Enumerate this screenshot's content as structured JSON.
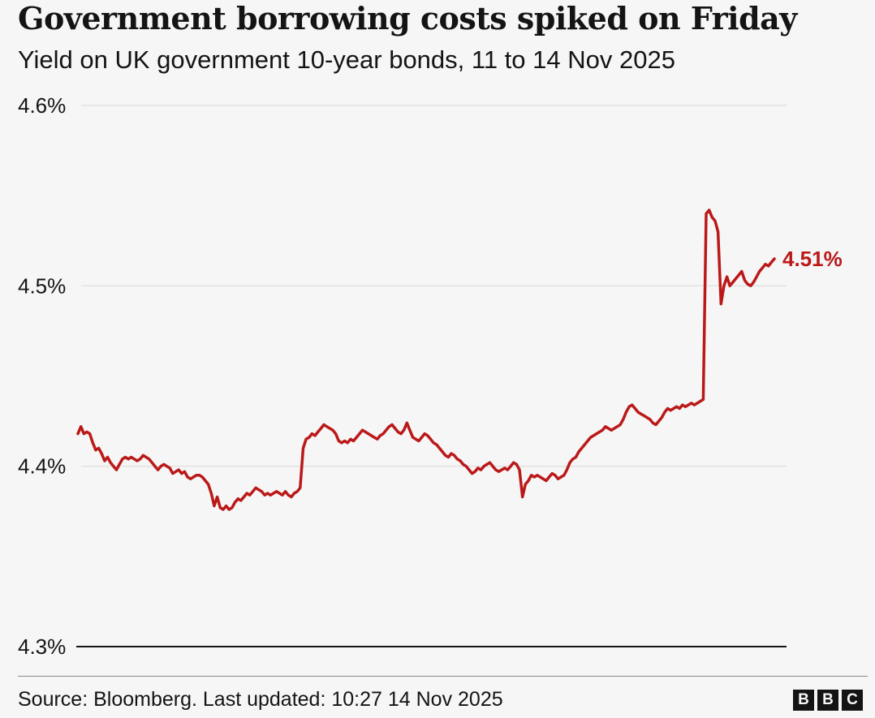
{
  "header": {
    "title": "Government borrowing costs spiked on Friday",
    "subtitle": "Yield on UK government 10-year bonds, 11 to 14 Nov 2025"
  },
  "footer": {
    "source": "Source: Bloomberg. Last updated: 10:27 14 Nov 2025",
    "logo_letters": [
      "B",
      "B",
      "C"
    ]
  },
  "colors": {
    "background": "#f6f6f6",
    "line": "#bb1919",
    "grid": "#e2e2e2",
    "axis": "#141414",
    "text": "#141414"
  },
  "chart_data": {
    "type": "line",
    "title": "Government borrowing costs spiked on Friday",
    "subtitle": "Yield on UK government 10-year bonds, 11 to 14 Nov 2025",
    "ylim": [
      4.3,
      4.6
    ],
    "y_ticks": [
      4.3,
      4.4,
      4.5,
      4.6
    ],
    "y_tick_labels": [
      "4.3%",
      "4.4%",
      "4.5%",
      "4.6%"
    ],
    "grid": true,
    "end_label": "4.51%",
    "series": [
      {
        "values": [
          4.418,
          4.422,
          4.418,
          4.419,
          4.418,
          4.413,
          4.409,
          4.41,
          4.407,
          4.403,
          4.405,
          4.402,
          4.4,
          4.398,
          4.401,
          4.404,
          4.405,
          4.404,
          4.405,
          4.404,
          4.403,
          4.404,
          4.406,
          4.405,
          4.404,
          4.402,
          4.4,
          4.398,
          4.4,
          4.401,
          4.4,
          4.399,
          4.396,
          4.397,
          4.398,
          4.396,
          4.397,
          4.394,
          4.393,
          4.394,
          4.395,
          4.395,
          4.394,
          4.392,
          4.39,
          4.385,
          4.378,
          4.383,
          4.377,
          4.376,
          4.378,
          4.376,
          4.377,
          4.38,
          4.382,
          4.381,
          4.383,
          4.385,
          4.384,
          4.386,
          4.388,
          4.387,
          4.386,
          4.384,
          4.385,
          4.384,
          4.385,
          4.386,
          4.385,
          4.384,
          4.386,
          4.384,
          4.383,
          4.385,
          4.386,
          4.388,
          4.41,
          4.415,
          4.416,
          4.418,
          4.417,
          4.419,
          4.421,
          4.423,
          4.422,
          4.421,
          4.42,
          4.418,
          4.414,
          4.413,
          4.414,
          4.413,
          4.415,
          4.414,
          4.416,
          4.418,
          4.42,
          4.419,
          4.418,
          4.417,
          4.416,
          4.415,
          4.417,
          4.418,
          4.42,
          4.422,
          4.423,
          4.421,
          4.419,
          4.418,
          4.42,
          4.424,
          4.42,
          4.416,
          4.415,
          4.414,
          4.416,
          4.418,
          4.417,
          4.415,
          4.413,
          4.412,
          4.41,
          4.408,
          4.406,
          4.405,
          4.407,
          4.406,
          4.404,
          4.403,
          4.401,
          4.4,
          4.398,
          4.396,
          4.397,
          4.399,
          4.398,
          4.4,
          4.401,
          4.402,
          4.4,
          4.398,
          4.397,
          4.398,
          4.399,
          4.398,
          4.4,
          4.402,
          4.401,
          4.398,
          4.383,
          4.39,
          4.392,
          4.395,
          4.394,
          4.395,
          4.394,
          4.393,
          4.392,
          4.394,
          4.396,
          4.395,
          4.393,
          4.394,
          4.395,
          4.398,
          4.402,
          4.404,
          4.405,
          4.408,
          4.41,
          4.412,
          4.414,
          4.416,
          4.417,
          4.418,
          4.419,
          4.42,
          4.422,
          4.421,
          4.42,
          4.421,
          4.422,
          4.423,
          4.426,
          4.43,
          4.433,
          4.434,
          4.432,
          4.43,
          4.429,
          4.428,
          4.427,
          4.426,
          4.424,
          4.423,
          4.425,
          4.427,
          4.43,
          4.432,
          4.431,
          4.432,
          4.433,
          4.432,
          4.434,
          4.433,
          4.434,
          4.435,
          4.434,
          4.435,
          4.436,
          4.437,
          4.54,
          4.542,
          4.538,
          4.536,
          4.53,
          4.49,
          4.5,
          4.505,
          4.5,
          4.502,
          4.504,
          4.506,
          4.508,
          4.503,
          4.501,
          4.5,
          4.502,
          4.505,
          4.508,
          4.51,
          4.512,
          4.511,
          4.513,
          4.515
        ]
      }
    ]
  }
}
